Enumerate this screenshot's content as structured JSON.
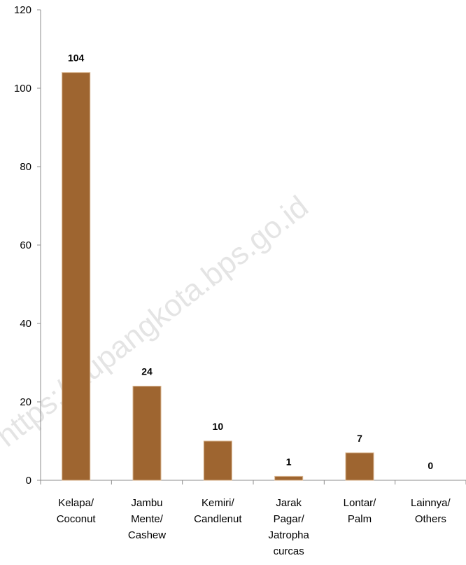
{
  "chart_data": {
    "type": "bar",
    "categories": [
      [
        "Kelapa/",
        "Coconut"
      ],
      [
        "Jambu",
        "Mente/",
        "Cashew"
      ],
      [
        "Kemiri/",
        "Candlenut"
      ],
      [
        "Jarak",
        "Pagar/",
        "Jatropha",
        "curcas"
      ],
      [
        "Lontar/",
        "Palm"
      ],
      [
        "Lainnya/",
        "Others"
      ]
    ],
    "values": [
      104,
      24,
      10,
      1,
      7,
      0
    ],
    "data_labels": [
      "104",
      "24",
      "10",
      "1",
      "7",
      "0"
    ],
    "ylim": [
      0,
      120
    ],
    "yticks": [
      0,
      20,
      40,
      60,
      80,
      100,
      120
    ],
    "grid": false,
    "legend": "none",
    "bar_color": "#9E6530",
    "title": "",
    "xlabel": "",
    "ylabel": ""
  },
  "watermark": "https://kupangkota.bps.go.id"
}
